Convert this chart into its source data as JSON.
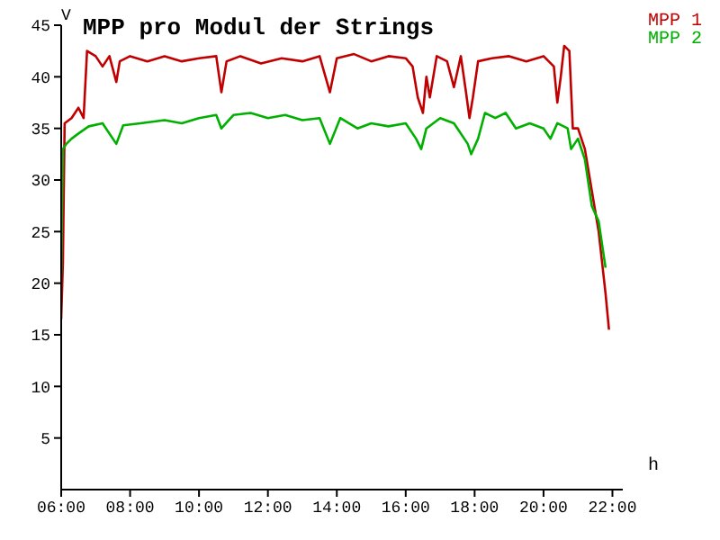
{
  "chart_data": {
    "type": "line",
    "title": "MPP pro Modul der Strings",
    "xlabel": "h",
    "ylabel": "V",
    "xlim": [
      6,
      22.3
    ],
    "xticks": [
      {
        "value": 6,
        "label": "06:00"
      },
      {
        "value": 8,
        "label": "08:00"
      },
      {
        "value": 10,
        "label": "10:00"
      },
      {
        "value": 12,
        "label": "12:00"
      },
      {
        "value": 14,
        "label": "14:00"
      },
      {
        "value": 16,
        "label": "16:00"
      },
      {
        "value": 18,
        "label": "18:00"
      },
      {
        "value": 20,
        "label": "20:00"
      },
      {
        "value": 22,
        "label": "22:00"
      }
    ],
    "ylim": [
      0,
      45
    ],
    "yticks": [
      5,
      10,
      15,
      20,
      25,
      30,
      35,
      40,
      45
    ],
    "grid": false,
    "legend": "top right",
    "marker": "none",
    "line_style": "solid",
    "series": [
      {
        "name": "MPP 1",
        "color": "#c00000",
        "x": [
          6.0,
          6.05,
          6.1,
          6.3,
          6.5,
          6.65,
          6.75,
          7.0,
          7.2,
          7.4,
          7.6,
          7.7,
          8.0,
          8.5,
          9.0,
          9.5,
          10.0,
          10.5,
          10.65,
          10.8,
          11.2,
          11.8,
          12.4,
          13.0,
          13.5,
          13.8,
          14.0,
          14.5,
          15.0,
          15.5,
          16.0,
          16.2,
          16.35,
          16.5,
          16.6,
          16.7,
          16.9,
          17.2,
          17.4,
          17.6,
          17.75,
          17.85,
          17.95,
          18.1,
          18.5,
          19.0,
          19.5,
          20.0,
          20.3,
          20.4,
          20.5,
          20.6,
          20.75,
          20.85,
          21.0,
          21.2,
          21.4,
          21.6,
          21.8,
          21.9
        ],
        "values": [
          16.5,
          22,
          35.5,
          36,
          37,
          36,
          42.5,
          42,
          41,
          42,
          39.5,
          41.5,
          42,
          41.5,
          42,
          41.5,
          41.8,
          42,
          38.5,
          41.5,
          42,
          41.3,
          41.8,
          41.5,
          42,
          38.5,
          41.8,
          42.2,
          41.5,
          42,
          41.8,
          41,
          38,
          36.5,
          40,
          38,
          42,
          41.5,
          39,
          42,
          38.5,
          36,
          38,
          41.5,
          41.8,
          42,
          41.5,
          42,
          41,
          37.5,
          40,
          43,
          42.5,
          35,
          35,
          33,
          29,
          25,
          19,
          15.5
        ]
      },
      {
        "name": "MPP 2",
        "color": "#00b000",
        "x": [
          6.0,
          6.05,
          6.15,
          6.3,
          6.5,
          6.8,
          7.2,
          7.6,
          7.8,
          8.3,
          9.0,
          9.5,
          10.0,
          10.5,
          10.65,
          11.0,
          11.5,
          12.0,
          12.5,
          13.0,
          13.5,
          13.8,
          14.1,
          14.6,
          15.0,
          15.5,
          16.0,
          16.3,
          16.45,
          16.6,
          17.0,
          17.4,
          17.8,
          17.9,
          18.1,
          18.3,
          18.6,
          18.9,
          19.2,
          19.6,
          20.0,
          20.2,
          20.4,
          20.7,
          20.8,
          21.0,
          21.2,
          21.4,
          21.6,
          21.8
        ],
        "values": [
          21,
          33,
          33.5,
          34,
          34.5,
          35.2,
          35.5,
          33.5,
          35.3,
          35.5,
          35.8,
          35.5,
          36,
          36.3,
          35,
          36.3,
          36.5,
          36,
          36.3,
          35.8,
          36,
          33.5,
          36,
          35,
          35.5,
          35.2,
          35.5,
          34,
          33,
          35,
          36,
          35.5,
          33.5,
          32.5,
          34,
          36.5,
          36,
          36.5,
          35,
          35.5,
          35,
          34,
          35.5,
          35,
          33,
          34,
          32,
          27.5,
          26,
          21.5
        ]
      }
    ]
  }
}
